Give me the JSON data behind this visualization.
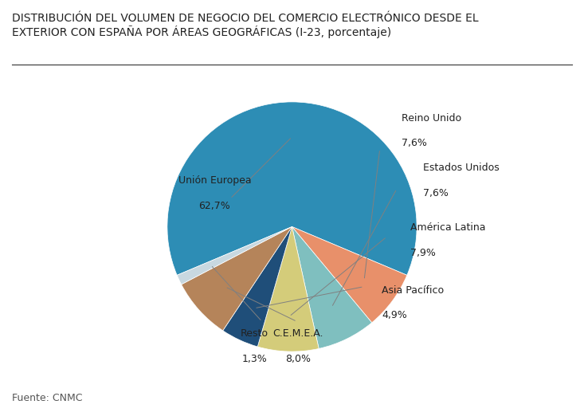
{
  "title": "DISTRIBUCIÓN DEL VOLUMEN DE NEGOCIO DEL COMERCIO ELECTRÓNICO DESDE EL\nEXTERIOR CON ESPAÑA POR ÁREAS GEOGRÁFICAS (I-23, porcentaje)",
  "source": "Fuente: CNMC",
  "labels": [
    "Unión Europea",
    "Reino Unido",
    "Estados Unidos",
    "América Latina",
    "Asia Pacífico",
    "C.E.M.E.A.",
    "Resto"
  ],
  "values": [
    62.7,
    7.6,
    7.6,
    7.9,
    4.9,
    8.0,
    1.3
  ],
  "colors": [
    "#2d8db5",
    "#e8906a",
    "#7fbfbf",
    "#d4cc7a",
    "#1f4e79",
    "#b5845a",
    "#c8d8e0"
  ],
  "background_color": "#ffffff",
  "title_fontsize": 10,
  "label_fontsize": 9,
  "source_fontsize": 9
}
